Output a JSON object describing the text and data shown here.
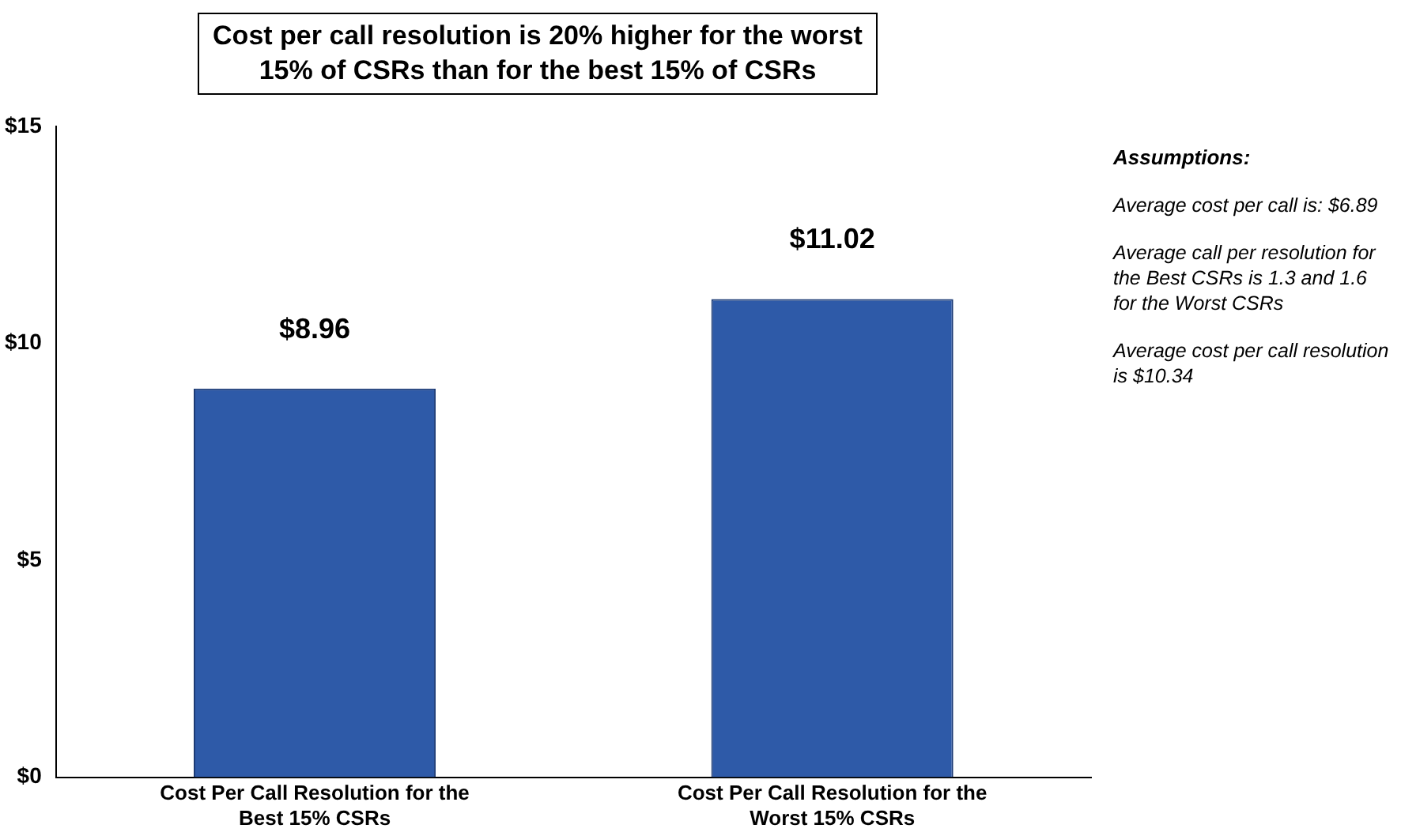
{
  "chart_data": {
    "type": "bar",
    "title": "Cost per call resolution is 20% higher for the worst 15% of CSRs than for the best 15% of CSRs",
    "categories": [
      "Cost Per Call Resolution for the Best 15% CSRs",
      "Cost Per Call Resolution for the Worst 15% CSRs"
    ],
    "values": [
      8.96,
      11.02
    ],
    "color": "#2e5aa8",
    "value_labels": [
      "$8.96",
      "$11.02"
    ],
    "ylim": [
      0,
      15
    ],
    "yticks": [
      {
        "value": 0,
        "label": "$0"
      },
      {
        "value": 5,
        "label": "$5"
      },
      {
        "value": 10,
        "label": "$10"
      },
      {
        "value": 15,
        "label": "$15"
      }
    ],
    "grid": false,
    "legend": false,
    "annotations": [
      "Assumptions:",
      "Average cost per call is: $6.89",
      "Average call per resolution for the Best CSRs is 1.3 and 1.6 for the Worst CSRs",
      "Average cost per call resolution is $10.34"
    ]
  }
}
